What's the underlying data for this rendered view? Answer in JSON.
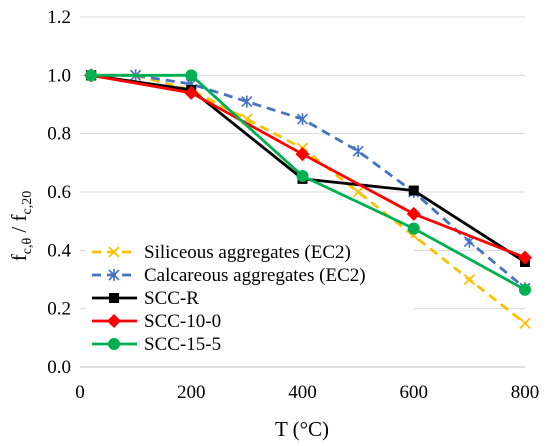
{
  "chart_data": {
    "type": "line",
    "xlabel": "T (°C)",
    "ylabel_main": "f",
    "ylabel_sub1": "c,θ",
    "ylabel_sep": " / f",
    "ylabel_sub2": "c,20",
    "xlim": [
      0,
      800
    ],
    "ylim": [
      0.0,
      1.2
    ],
    "xticks": [
      0,
      200,
      400,
      600,
      800
    ],
    "yticks": [
      0.0,
      0.2,
      0.4,
      0.6,
      0.8,
      1.0,
      1.2
    ],
    "xtick_labels": [
      "0",
      "200",
      "400",
      "600",
      "800"
    ],
    "ytick_labels": [
      "0.0",
      "0.2",
      "0.4",
      "0.6",
      "0.8",
      "1.0",
      "1.2"
    ],
    "grid": "horizontal",
    "legend_position": "bottom-left",
    "series": [
      {
        "name": "Siliceous aggregates (EC2)",
        "color": "#ffc000",
        "dashed": true,
        "marker": "x",
        "x": [
          20,
          100,
          200,
          300,
          400,
          500,
          600,
          700,
          800
        ],
        "y": [
          1.0,
          1.0,
          0.95,
          0.85,
          0.75,
          0.6,
          0.45,
          0.3,
          0.15
        ]
      },
      {
        "name": "Calcareous aggregates (EC2)",
        "color": "#4472c4",
        "dashed": true,
        "marker": "star",
        "x": [
          20,
          100,
          200,
          300,
          400,
          500,
          600,
          700,
          800
        ],
        "y": [
          1.0,
          1.0,
          0.97,
          0.91,
          0.85,
          0.74,
          0.6,
          0.43,
          0.27
        ]
      },
      {
        "name": "SCC-R",
        "color": "#000000",
        "dashed": false,
        "marker": "square",
        "x": [
          20,
          200,
          400,
          600,
          800
        ],
        "y": [
          1.0,
          0.95,
          0.645,
          0.605,
          0.36
        ]
      },
      {
        "name": "SCC-10-0",
        "color": "#ff0000",
        "dashed": false,
        "marker": "diamond",
        "x": [
          20,
          200,
          400,
          600,
          800
        ],
        "y": [
          1.0,
          0.94,
          0.73,
          0.525,
          0.375
        ]
      },
      {
        "name": "SCC-15-5",
        "color": "#00b050",
        "dashed": false,
        "marker": "circle",
        "x": [
          20,
          200,
          400,
          600,
          800
        ],
        "y": [
          1.0,
          1.0,
          0.655,
          0.475,
          0.265
        ]
      }
    ]
  }
}
